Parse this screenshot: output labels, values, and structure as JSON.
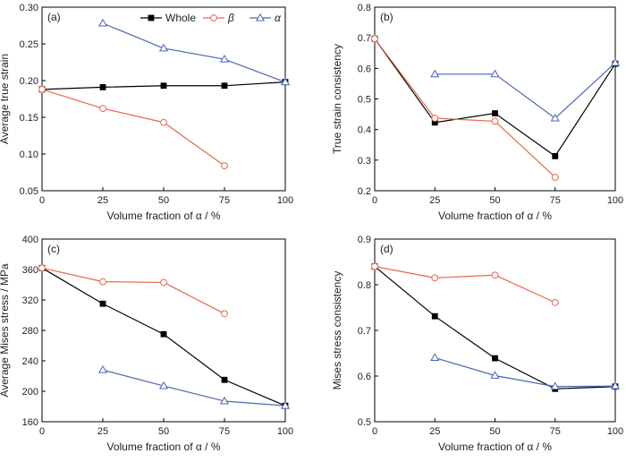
{
  "chart_data": [
    {
      "type": "line",
      "panel_label": "(a)",
      "xlabel": "Volume fraction of α / %",
      "ylabel": "Average true strain",
      "xlim": [
        0,
        100
      ],
      "ylim": [
        0.05,
        0.3
      ],
      "xticks": [
        0,
        25,
        50,
        75,
        100
      ],
      "yticks": [
        0.05,
        0.1,
        0.15,
        0.2,
        0.25,
        0.3
      ],
      "ytick_labels": [
        "0.05",
        "0.10",
        "0.15",
        "0.20",
        "0.25",
        "0.30"
      ],
      "legend": "top-right",
      "series": [
        {
          "name": "Whole",
          "color": "#000000",
          "marker": "square-filled",
          "x": [
            0,
            25,
            50,
            75,
            100
          ],
          "y": [
            0.188,
            0.191,
            0.193,
            0.193,
            0.198
          ]
        },
        {
          "name": "β",
          "color": "#e8684a",
          "marker": "circle-open",
          "x": [
            0,
            25,
            50,
            75
          ],
          "y": [
            0.188,
            0.162,
            0.143,
            0.084
          ]
        },
        {
          "name": "α",
          "color": "#4a66b5",
          "marker": "triangle-open",
          "x": [
            25,
            50,
            75,
            100
          ],
          "y": [
            0.278,
            0.244,
            0.229,
            0.198
          ]
        }
      ]
    },
    {
      "type": "line",
      "panel_label": "(b)",
      "xlabel": "Volume fraction of α / %",
      "ylabel": "True strain consistency",
      "xlim": [
        0,
        100
      ],
      "ylim": [
        0.2,
        0.8
      ],
      "xticks": [
        0,
        25,
        50,
        75,
        100
      ],
      "yticks": [
        0.2,
        0.3,
        0.4,
        0.5,
        0.6,
        0.7,
        0.8
      ],
      "ytick_labels": [
        "0.2",
        "0.3",
        "0.4",
        "0.5",
        "0.6",
        "0.7",
        "0.8"
      ],
      "series": [
        {
          "color": "#000000",
          "marker": "square-filled",
          "x": [
            0,
            25,
            50,
            75,
            100
          ],
          "y": [
            0.697,
            0.423,
            0.453,
            0.313,
            0.615
          ]
        },
        {
          "color": "#e8684a",
          "marker": "circle-open",
          "x": [
            0,
            25,
            50,
            75
          ],
          "y": [
            0.697,
            0.437,
            0.427,
            0.244
          ]
        },
        {
          "color": "#4a66b5",
          "marker": "triangle-open",
          "x": [
            25,
            50,
            75,
            100
          ],
          "y": [
            0.581,
            0.581,
            0.437,
            0.618
          ]
        }
      ]
    },
    {
      "type": "line",
      "panel_label": "(c)",
      "xlabel": "Volume fraction of α / %",
      "ylabel": "Average Mises stress / MPa",
      "xlim": [
        0,
        100
      ],
      "ylim": [
        160,
        400
      ],
      "xticks": [
        0,
        25,
        50,
        75,
        100
      ],
      "yticks": [
        160,
        200,
        240,
        280,
        320,
        360,
        400
      ],
      "ytick_labels": [
        "160",
        "200",
        "240",
        "280",
        "320",
        "360",
        "400"
      ],
      "series": [
        {
          "color": "#000000",
          "marker": "square-filled",
          "x": [
            0,
            25,
            50,
            75,
            100
          ],
          "y": [
            362,
            315,
            275,
            215,
            181
          ]
        },
        {
          "color": "#e8684a",
          "marker": "circle-open",
          "x": [
            0,
            25,
            50,
            75
          ],
          "y": [
            362,
            344,
            343,
            302
          ]
        },
        {
          "color": "#4a66b5",
          "marker": "triangle-open",
          "x": [
            25,
            50,
            75,
            100
          ],
          "y": [
            228,
            207,
            187,
            181
          ]
        }
      ]
    },
    {
      "type": "line",
      "panel_label": "(d)",
      "xlabel": "Volume fraction of α / %",
      "ylabel": "Mises stress consistency",
      "xlim": [
        0,
        100
      ],
      "ylim": [
        0.5,
        0.9
      ],
      "xticks": [
        0,
        25,
        50,
        75,
        100
      ],
      "yticks": [
        0.5,
        0.6,
        0.7,
        0.8,
        0.9
      ],
      "ytick_labels": [
        "0.5",
        "0.6",
        "0.7",
        "0.8",
        "0.9"
      ],
      "series": [
        {
          "color": "#000000",
          "marker": "square-filled",
          "x": [
            0,
            25,
            50,
            75,
            100
          ],
          "y": [
            0.84,
            0.731,
            0.639,
            0.572,
            0.577
          ]
        },
        {
          "color": "#e8684a",
          "marker": "circle-open",
          "x": [
            0,
            25,
            50,
            75
          ],
          "y": [
            0.84,
            0.815,
            0.821,
            0.761
          ]
        },
        {
          "color": "#4a66b5",
          "marker": "triangle-open",
          "x": [
            25,
            50,
            75,
            100
          ],
          "y": [
            0.64,
            0.601,
            0.577,
            0.578
          ]
        }
      ]
    }
  ]
}
